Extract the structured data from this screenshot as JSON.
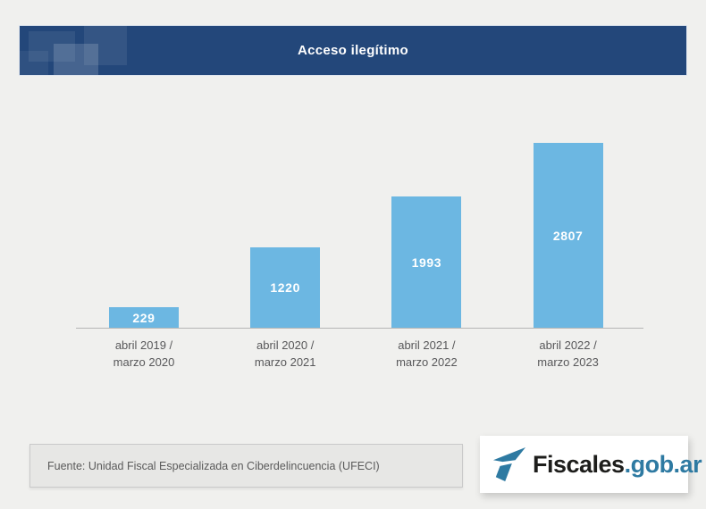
{
  "header": {
    "title": "Acceso ilegítimo"
  },
  "chart_data": {
    "type": "bar",
    "title": "Acceso ilegítimo",
    "categories": [
      "abril 2019 / marzo 2020",
      "abril 2020 / marzo 2021",
      "abril 2021 / marzo 2022",
      "abril 2022 / marzo 2023"
    ],
    "category_lines": [
      [
        "abril 2019 /",
        "marzo 2020"
      ],
      [
        "abril 2020 /",
        "marzo 2021"
      ],
      [
        "abril 2021 /",
        "marzo 2022"
      ],
      [
        "abril 2022 /",
        "marzo 2023"
      ]
    ],
    "values": [
      229,
      1220,
      1993,
      2807
    ],
    "xlabel": "",
    "ylabel": "",
    "ylim": [
      0,
      2807
    ],
    "grid": false,
    "legend": false,
    "bar_color": "#6cb7e2",
    "value_label_color": "#ffffff",
    "axis_color": "#b5b5b5"
  },
  "footer": {
    "source": "Fuente: Unidad Fiscal Especializada en Ciberdelincuencia (UFECI)"
  },
  "logo": {
    "brand": "Fiscales",
    "domain": ".gob.ar",
    "icon": "fiscales-flag-icon",
    "icon_color": "#2e7aa2"
  },
  "colors": {
    "page_background": "#f0f0ee",
    "header_background": "#23477a",
    "header_title": "#ffffff",
    "category_label": "#58585a",
    "source_box_background": "#e7e7e5"
  }
}
